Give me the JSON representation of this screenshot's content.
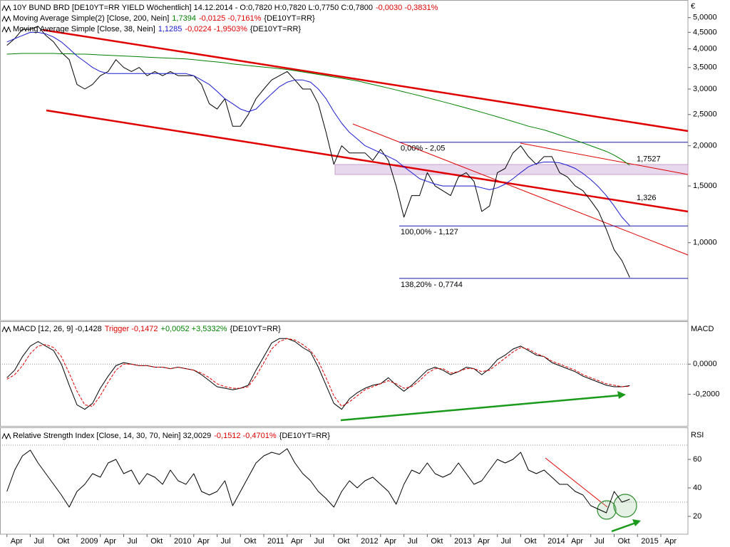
{
  "chart_data": [
    {
      "type": "line",
      "log": true,
      "unit": "€",
      "ylim": [
        0.6,
        5.5
      ],
      "yticks": [
        {
          "value": 1,
          "label": "1,0000"
        },
        {
          "value": 1.5,
          "label": "1,5000"
        },
        {
          "value": 2,
          "label": "2,0000"
        },
        {
          "value": 2.5,
          "label": "2,5000"
        },
        {
          "value": 3,
          "label": "3,0000"
        },
        {
          "value": 3.5,
          "label": "3,5000"
        },
        {
          "value": 4,
          "label": "4,0000"
        },
        {
          "value": 4.5,
          "label": "4,5000"
        },
        {
          "value": 5,
          "label": "5,0000"
        }
      ],
      "legend": [
        [
          {
            "text": "10Y BUND BRD [DE10YT=RR YIELD Wöchentlich] 14.12.2014 - O:0,7820 H:0,7820 L:0,7750 C:0,7800",
            "color": "#000000"
          },
          {
            "text": "-0,0030 -0,3831%",
            "color": "#e00000"
          }
        ],
        [
          {
            "text": "Moving Average Simple(2) [Close, 200, Nein]",
            "color": "#000000"
          },
          {
            "text": "1,7394",
            "color": "#008000"
          },
          {
            "text": "-0,0125 -0,7161%",
            "color": "#e00000"
          },
          {
            "text": "{DE10YT=RR}",
            "color": "#000000"
          }
        ],
        [
          {
            "text": "Moving Average Simple [Close, 38, Nein]",
            "color": "#000000"
          },
          {
            "text": "1,1285",
            "color": "#1a1ad0"
          },
          {
            "text": "-0,0224 -1,9503%",
            "color": "#e00000"
          },
          {
            "text": "{DE10YT=RR}",
            "color": "#000000"
          }
        ]
      ],
      "series": [
        {
          "color": "#000000",
          "values": [
            4.1,
            4.3,
            4.6,
            4.6,
            4.7,
            4.4,
            4.2,
            3.9,
            3.7,
            3.1,
            3.0,
            3.1,
            3.3,
            3.4,
            3.7,
            3.5,
            3.4,
            3.5,
            3.3,
            3.4,
            3.3,
            3.4,
            3.3,
            3.3,
            3.3,
            3.1,
            2.7,
            2.6,
            2.8,
            2.3,
            2.3,
            2.5,
            2.8,
            3.0,
            3.2,
            3.3,
            3.4,
            3.2,
            3.0,
            3.0,
            2.7,
            2.2,
            1.75,
            2.0,
            1.9,
            1.9,
            1.9,
            1.8,
            1.95,
            1.8,
            1.5,
            1.2,
            1.4,
            1.4,
            1.65,
            1.5,
            1.45,
            1.4,
            1.6,
            1.65,
            1.55,
            1.25,
            1.3,
            1.65,
            1.7,
            1.9,
            2.0,
            1.85,
            1.75,
            1.85,
            1.85,
            1.65,
            1.6,
            1.5,
            1.45,
            1.35,
            1.25,
            1.1,
            0.95,
            0.88,
            0.78,
            null,
            null,
            null,
            null
          ]
        },
        {
          "color": "#008000",
          "values": [
            3.85,
            3.86,
            3.87,
            3.87,
            3.87,
            3.87,
            3.87,
            3.86,
            3.86,
            3.85,
            3.85,
            3.84,
            3.83,
            3.82,
            3.81,
            3.8,
            3.79,
            3.78,
            3.77,
            3.76,
            3.75,
            3.74,
            3.73,
            3.72,
            3.7,
            3.68,
            3.66,
            3.64,
            3.62,
            3.59,
            3.57,
            3.55,
            3.53,
            3.51,
            3.49,
            3.47,
            3.45,
            3.42,
            3.39,
            3.36,
            3.33,
            3.3,
            3.27,
            3.24,
            3.21,
            3.18,
            3.14,
            3.1,
            3.06,
            3.02,
            2.98,
            2.94,
            2.9,
            2.86,
            2.82,
            2.78,
            2.74,
            2.7,
            2.66,
            2.62,
            2.58,
            2.54,
            2.5,
            2.46,
            2.42,
            2.38,
            2.34,
            2.3,
            2.27,
            2.24,
            2.2,
            2.16,
            2.12,
            2.08,
            2.04,
            2.0,
            1.96,
            1.92,
            1.87,
            1.81,
            1.74,
            null,
            null,
            null,
            null
          ]
        },
        {
          "color": "#1a1ad0",
          "values": [
            4.2,
            4.3,
            4.4,
            4.5,
            4.5,
            4.45,
            4.35,
            4.2,
            4.0,
            3.8,
            3.65,
            3.5,
            3.4,
            3.35,
            3.35,
            3.35,
            3.35,
            3.35,
            3.35,
            3.35,
            3.35,
            3.35,
            3.35,
            3.35,
            3.3,
            3.2,
            3.1,
            2.95,
            2.8,
            2.7,
            2.6,
            2.55,
            2.6,
            2.75,
            2.9,
            3.05,
            3.15,
            3.2,
            3.2,
            3.15,
            3.0,
            2.8,
            2.55,
            2.35,
            2.2,
            2.1,
            2.0,
            1.95,
            1.9,
            1.85,
            1.8,
            1.72,
            1.65,
            1.58,
            1.55,
            1.52,
            1.5,
            1.5,
            1.5,
            1.5,
            1.5,
            1.48,
            1.46,
            1.48,
            1.52,
            1.58,
            1.65,
            1.72,
            1.76,
            1.78,
            1.78,
            1.77,
            1.74,
            1.7,
            1.64,
            1.57,
            1.49,
            1.4,
            1.3,
            1.2,
            1.13,
            null,
            null,
            null,
            null
          ]
        }
      ],
      "levels": [
        {
          "label": "0,00% - 2,05",
          "value": 2.05,
          "color": "#1a1aa6"
        },
        {
          "label": "100,00% - 1,127",
          "value": 1.127,
          "color": "#1a1aa6"
        },
        {
          "label": "138,20% - 0,7744",
          "value": 0.7744,
          "color": "#1a1aa6"
        }
      ],
      "trend_labels": [
        {
          "label": "1,7527",
          "value": 1.7527,
          "color": "#e00000"
        },
        {
          "label": "1,326",
          "value": 1.326,
          "color": "#e00000"
        }
      ]
    },
    {
      "type": "line",
      "axis_label": "MACD",
      "ylim": [
        -0.41,
        0.28
      ],
      "yticks": [
        {
          "value": -0.2,
          "label": "-0,2000"
        },
        {
          "value": 0,
          "label": "0,0000"
        }
      ],
      "hlines": [
        0
      ],
      "legend": [
        [
          {
            "text": "MACD [12, 26, 9] -0,1428",
            "color": "#000000"
          },
          {
            "text": "Trigger -0,1472",
            "color": "#e00000"
          },
          {
            "text": "+0,0052 +3,5332%",
            "color": "#008000"
          },
          {
            "text": "{DE10YT=RR}",
            "color": "#000000"
          }
        ]
      ],
      "series": [
        {
          "color": "#000000",
          "values": [
            -0.09,
            -0.04,
            0.05,
            0.12,
            0.15,
            0.12,
            0.09,
            0.0,
            -0.14,
            -0.27,
            -0.3,
            -0.26,
            -0.16,
            -0.08,
            -0.01,
            0.01,
            0.0,
            -0.01,
            -0.01,
            -0.02,
            -0.02,
            -0.03,
            -0.02,
            -0.03,
            -0.04,
            -0.07,
            -0.11,
            -0.15,
            -0.16,
            -0.17,
            -0.16,
            -0.14,
            -0.04,
            0.05,
            0.14,
            0.17,
            0.17,
            0.15,
            0.11,
            0.08,
            -0.02,
            -0.14,
            -0.26,
            -0.3,
            -0.23,
            -0.19,
            -0.16,
            -0.14,
            -0.13,
            -0.09,
            -0.14,
            -0.18,
            -0.14,
            -0.09,
            -0.04,
            -0.02,
            -0.04,
            -0.07,
            -0.05,
            -0.02,
            -0.03,
            -0.07,
            -0.03,
            0.03,
            0.06,
            0.1,
            0.12,
            0.09,
            0.06,
            0.05,
            0.01,
            -0.01,
            -0.03,
            -0.05,
            -0.08,
            -0.1,
            -0.12,
            -0.14,
            -0.15,
            -0.15,
            -0.1428,
            null,
            null,
            null,
            null
          ]
        },
        {
          "color": "#e00000",
          "dash": true,
          "values": [
            -0.1,
            -0.07,
            -0.01,
            0.07,
            0.12,
            0.13,
            0.11,
            0.05,
            -0.06,
            -0.18,
            -0.27,
            -0.28,
            -0.21,
            -0.12,
            -0.04,
            0.0,
            0.0,
            -0.01,
            -0.01,
            -0.02,
            -0.02,
            -0.03,
            -0.02,
            -0.03,
            -0.04,
            -0.06,
            -0.09,
            -0.13,
            -0.15,
            -0.16,
            -0.16,
            -0.15,
            -0.08,
            0.01,
            0.1,
            0.15,
            0.17,
            0.16,
            0.13,
            0.09,
            0.02,
            -0.09,
            -0.21,
            -0.28,
            -0.25,
            -0.21,
            -0.17,
            -0.15,
            -0.13,
            -0.11,
            -0.13,
            -0.16,
            -0.15,
            -0.11,
            -0.06,
            -0.03,
            -0.03,
            -0.06,
            -0.05,
            -0.03,
            -0.03,
            -0.05,
            -0.04,
            0.0,
            0.04,
            0.08,
            0.11,
            0.1,
            0.07,
            0.05,
            0.02,
            0.0,
            -0.02,
            -0.04,
            -0.07,
            -0.09,
            -0.11,
            -0.13,
            -0.14,
            -0.15,
            -0.1472,
            null,
            null,
            null,
            null
          ]
        }
      ]
    },
    {
      "type": "line",
      "axis_label": "RSI",
      "ylim": [
        7.5,
        81.5
      ],
      "yticks": [
        20,
        40,
        60
      ],
      "hlines": [
        30,
        70
      ],
      "legend": [
        [
          {
            "text": "Relative Strength Index [Close, 14, 30, 70, Nein] 32,0029",
            "color": "#000000"
          },
          {
            "text": "-0,1512 -0,4701%",
            "color": "#e00000"
          },
          {
            "text": "{DE10YT=RR}",
            "color": "#000000"
          }
        ]
      ],
      "categories": [
        "Apr",
        null,
        null,
        "Jul",
        null,
        null,
        "Okt",
        null,
        null,
        "2009",
        null,
        null,
        "Apr",
        null,
        null,
        "Jul",
        null,
        null,
        "Okt",
        null,
        null,
        "2010",
        null,
        null,
        "Apr",
        null,
        null,
        "Jul",
        null,
        null,
        "Okt",
        null,
        null,
        "2011",
        null,
        null,
        "Apr",
        null,
        null,
        "Jul",
        null,
        null,
        "Okt",
        null,
        null,
        "2012",
        null,
        null,
        "Apr",
        null,
        null,
        "Jul",
        null,
        null,
        "Okt",
        null,
        null,
        "2013",
        null,
        null,
        "Apr",
        null,
        null,
        "Jul",
        null,
        null,
        "Okt",
        null,
        null,
        "2014",
        null,
        null,
        "Apr",
        null,
        null,
        "Jul",
        null,
        null,
        "Okt",
        null,
        null,
        "2015",
        null,
        null,
        "Apr"
      ],
      "series": [
        {
          "color": "#000000",
          "values": [
            37.5,
            52.5,
            62.5,
            66.5,
            57.5,
            50,
            42.5,
            35,
            26.5,
            37.5,
            42.5,
            50,
            47.5,
            57.5,
            60,
            50,
            52.5,
            42.5,
            50,
            47.5,
            42.5,
            52.5,
            45,
            42.5,
            50,
            37.5,
            35,
            37.5,
            45,
            27.5,
            37.5,
            47.5,
            57.5,
            62.5,
            65,
            63.5,
            67.5,
            57.5,
            50,
            45,
            37.5,
            32.5,
            26.5,
            37.5,
            45,
            40,
            45,
            47.5,
            42.5,
            37.5,
            28.5,
            42.5,
            52.5,
            50,
            57.5,
            50,
            47.5,
            50,
            57.5,
            50,
            42.5,
            45,
            52.5,
            60,
            57.5,
            60,
            65,
            52.5,
            50,
            52.5,
            47.5,
            42.5,
            42.5,
            37.5,
            35,
            27.5,
            25,
            22.5,
            37.5,
            30,
            32.0029,
            null,
            null,
            null,
            null
          ]
        }
      ]
    }
  ]
}
